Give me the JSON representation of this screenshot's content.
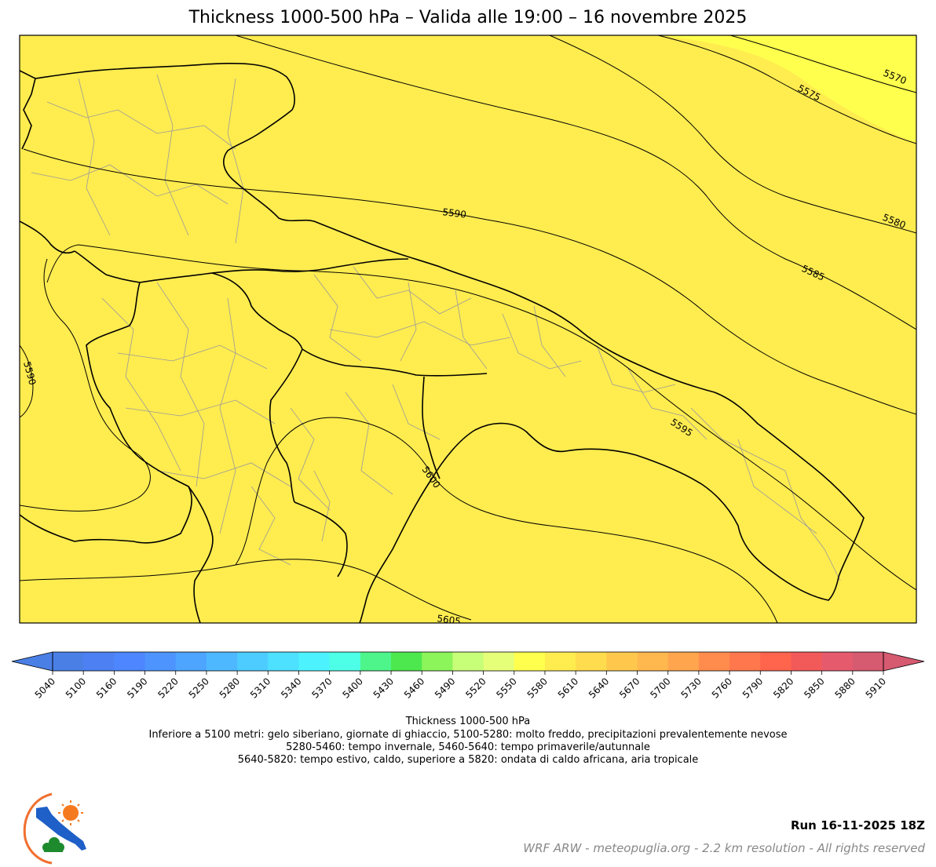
{
  "title": "Thickness 1000-500 hPa – Valida alle 19:00 – 16 novembre 2025",
  "map": {
    "fill_colors": {
      "main": "#ffec4f",
      "high_band": "#ffff4d"
    },
    "contours": [
      {
        "value": 5570,
        "label": "5570"
      },
      {
        "value": 5575,
        "label": "5575"
      },
      {
        "value": 5580,
        "label": "5580"
      },
      {
        "value": 5585,
        "label": "5585"
      },
      {
        "value": 5590,
        "label": "5590"
      },
      {
        "value": 5590,
        "label": "5590"
      },
      {
        "value": 5595,
        "label": "5595"
      },
      {
        "value": 5600,
        "label": "5600"
      },
      {
        "value": 5605,
        "label": "5605"
      }
    ]
  },
  "colorbar": {
    "ticks": [
      "5040",
      "5100",
      "5160",
      "5190",
      "5220",
      "5250",
      "5280",
      "5310",
      "5340",
      "5370",
      "5400",
      "5430",
      "5460",
      "5490",
      "5520",
      "5550",
      "5580",
      "5610",
      "5640",
      "5670",
      "5700",
      "5730",
      "5760",
      "5790",
      "5820",
      "5850",
      "5880",
      "5910"
    ],
    "colors": [
      "#4a7fe6",
      "#4d80f2",
      "#4d86ff",
      "#4d94ff",
      "#4da5ff",
      "#4db8ff",
      "#4dccff",
      "#4de0ff",
      "#4df2ff",
      "#4dffe6",
      "#4df58a",
      "#4de84d",
      "#8cf55a",
      "#c8ff78",
      "#e6ff78",
      "#ffff4d",
      "#ffec4f",
      "#ffdc4d",
      "#ffc84d",
      "#ffb84d",
      "#ffa54d",
      "#ff8c4d",
      "#ff784d",
      "#ff644d",
      "#f25a5a",
      "#e65a6e",
      "#d65a70"
    ],
    "under_color": "#4a7fe6",
    "over_color": "#d65a70",
    "label": "Thickness 1000-500 hPa",
    "desc_lines": [
      "Inferiore a 5100 metri: gelo siberiano, giornate di ghiaccio, 5100-5280: molto freddo, precipitazioni prevalentemente nevose",
      "5280-5460: tempo invernale, 5460-5640: tempo primaverile/autunnale",
      "5640-5820: tempo estivo, caldo, superiore a 5820: ondata di caldo africana, aria tropicale"
    ]
  },
  "run": "Run 16-11-2025 18Z",
  "credit": "WRF ARW - meteopuglia.org - 2.2 km resolution - All rights reserved"
}
